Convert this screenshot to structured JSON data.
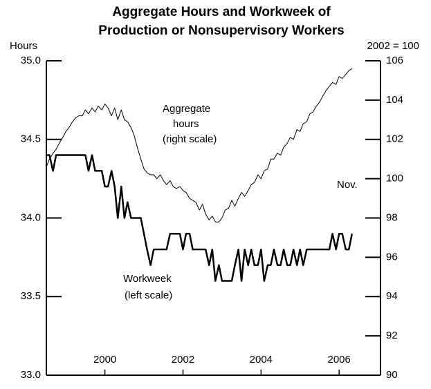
{
  "chart_data": {
    "type": "line",
    "title": [
      "Aggregate Hours and Workweek of",
      "Production or Nonsupervisory Workers"
    ],
    "y_label": "Hours",
    "y2_label": "2002 = 100",
    "annotations": {
      "aggregate": [
        "Aggregate",
        "hours",
        "(right scale)"
      ],
      "workweek": [
        "Workweek",
        "(left scale)"
      ],
      "end": "Nov."
    },
    "x": [
      1999.0,
      1999.08,
      1999.17,
      1999.25,
      1999.33,
      1999.42,
      1999.5,
      1999.58,
      1999.67,
      1999.75,
      1999.83,
      1999.92,
      2000.0,
      2000.08,
      2000.17,
      2000.25,
      2000.33,
      2000.42,
      2000.5,
      2000.58,
      2000.67,
      2000.75,
      2000.83,
      2000.92,
      2001.0,
      2001.08,
      2001.17,
      2001.25,
      2001.33,
      2001.42,
      2001.5,
      2001.58,
      2001.67,
      2001.75,
      2001.83,
      2001.92,
      2002.0,
      2002.08,
      2002.17,
      2002.25,
      2002.33,
      2002.42,
      2002.5,
      2002.58,
      2002.67,
      2002.75,
      2002.83,
      2002.92,
      2003.0,
      2003.08,
      2003.17,
      2003.25,
      2003.33,
      2003.42,
      2003.5,
      2003.58,
      2003.67,
      2003.75,
      2003.83,
      2003.92,
      2004.0,
      2004.08,
      2004.17,
      2004.25,
      2004.33,
      2004.42,
      2004.5,
      2004.58,
      2004.67,
      2004.75,
      2004.83,
      2004.92,
      2005.0,
      2005.08,
      2005.17,
      2005.25,
      2005.33,
      2005.42,
      2005.5,
      2005.58,
      2005.67,
      2005.75,
      2005.83,
      2005.92,
      2006.0,
      2006.08,
      2006.17,
      2006.25,
      2006.33,
      2006.42,
      2006.5,
      2006.58,
      2006.67,
      2006.75,
      2006.83
    ],
    "series": [
      {
        "name": "Workweek",
        "color": "#000000",
        "width": 2.5,
        "axis": "y",
        "values": [
          34.4,
          34.4,
          34.3,
          34.4,
          34.4,
          34.4,
          34.4,
          34.4,
          34.4,
          34.4,
          34.4,
          34.4,
          34.4,
          34.3,
          34.4,
          34.3,
          34.3,
          34.3,
          34.2,
          34.2,
          34.3,
          34.2,
          34.0,
          34.2,
          34.0,
          34.1,
          34.0,
          34.0,
          34.0,
          34.0,
          33.9,
          33.8,
          33.7,
          33.8,
          33.8,
          33.8,
          33.8,
          33.8,
          33.9,
          33.9,
          33.9,
          33.9,
          33.8,
          33.9,
          33.9,
          33.8,
          33.8,
          33.8,
          33.8,
          33.8,
          33.7,
          33.8,
          33.6,
          33.7,
          33.6,
          33.6,
          33.6,
          33.6,
          33.7,
          33.8,
          33.6,
          33.8,
          33.7,
          33.8,
          33.7,
          33.7,
          33.8,
          33.6,
          33.7,
          33.7,
          33.8,
          33.7,
          33.7,
          33.8,
          33.7,
          33.7,
          33.8,
          33.7,
          33.8,
          33.7,
          33.8,
          33.8,
          33.8,
          33.8,
          33.8,
          33.8,
          33.8,
          33.8,
          33.9,
          33.8,
          33.9,
          33.9,
          33.8,
          33.8,
          33.9
        ]
      },
      {
        "name": "Aggregate hours",
        "color": "#000000",
        "width": 1,
        "axis": "y2",
        "values": [
          100.6,
          101.0,
          101.3,
          101.5,
          101.8,
          102.1,
          102.4,
          102.6,
          102.9,
          103.1,
          103.2,
          103.2,
          103.5,
          103.3,
          103.6,
          103.4,
          103.7,
          103.5,
          103.8,
          103.6,
          103.2,
          103.6,
          103.0,
          103.5,
          103.0,
          102.9,
          102.6,
          102.2,
          101.6,
          101.0,
          100.5,
          100.3,
          100.2,
          100.2,
          100.0,
          100.2,
          99.9,
          99.7,
          99.9,
          99.6,
          99.5,
          99.6,
          99.4,
          99.3,
          99.0,
          98.9,
          98.8,
          98.4,
          98.7,
          98.2,
          97.9,
          98.1,
          97.8,
          97.8,
          98.0,
          98.4,
          98.5,
          98.9,
          98.6,
          99.0,
          99.3,
          99.1,
          99.4,
          99.7,
          99.8,
          100.2,
          100.0,
          100.4,
          100.5,
          101.0,
          101.0,
          101.3,
          101.2,
          101.6,
          101.8,
          102.1,
          102.0,
          102.5,
          102.4,
          102.8,
          102.9,
          103.3,
          103.4,
          103.7,
          103.9,
          104.2,
          104.5,
          104.7,
          104.9,
          104.8,
          105.2,
          105.1,
          105.3,
          105.5,
          105.6
        ]
      }
    ],
    "xlim": [
      1999.0,
      2007.56
    ],
    "xticks": [
      {
        "value": 2000.5,
        "label": "2000"
      },
      {
        "value": 2002.5,
        "label": "2002"
      },
      {
        "value": 2004.5,
        "label": "2004"
      },
      {
        "value": 2006.5,
        "label": "2006"
      }
    ],
    "ylim": [
      33.0,
      35.0
    ],
    "yticks": [
      {
        "value": 33.0,
        "label": "33.0"
      },
      33.5,
      {
        "value": 34.0,
        "label": "34.0"
      },
      34.5,
      {
        "value": 35.0,
        "label": "35.0"
      }
    ],
    "y2lim": [
      90,
      106
    ],
    "y2ticks": [
      90,
      92,
      94,
      96,
      98,
      100,
      102,
      104,
      106
    ]
  }
}
